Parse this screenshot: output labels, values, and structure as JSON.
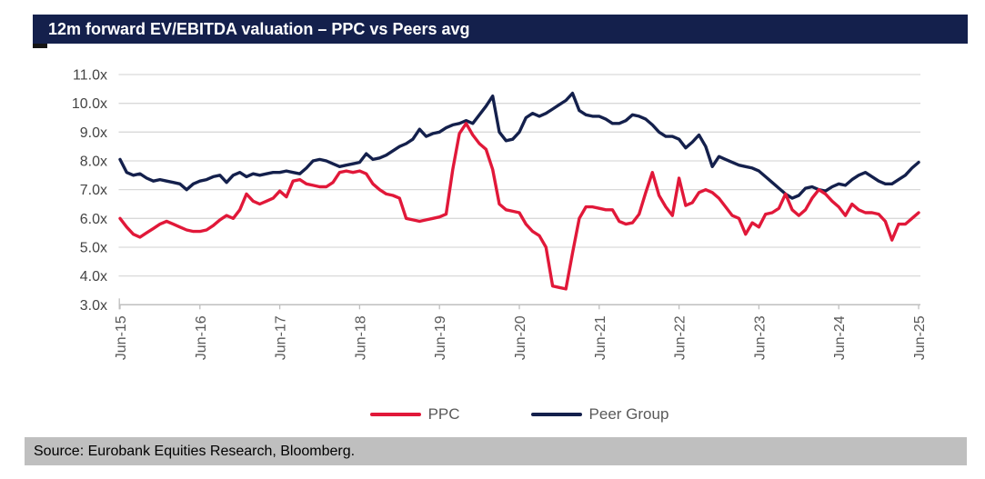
{
  "header": {
    "title": "12m forward EV/EBITDA valuation – PPC vs Peers avg",
    "bar_color": "#14204c",
    "text_color": "#ffffff"
  },
  "colors": {
    "accent_navy": "#14204c",
    "accent_red": "#e11839",
    "gridline": "#d9d9d9",
    "axis": "#bfbfbf",
    "y_tick_label": "#444444",
    "x_tick_label": "#595959",
    "legend_text": "#595959",
    "footer_bar": "#bfbfbf"
  },
  "chart_data": {
    "type": "line",
    "title": "12m forward EV/EBITDA valuation – PPC vs Peers avg",
    "grid": "horizontal",
    "legend_position": "bottom",
    "y_axis": {
      "min": 3.0,
      "max": 11.0,
      "tick_step": 1.0,
      "tick_labels": [
        "11.0x",
        "10.0x",
        "9.0x",
        "8.0x",
        "7.0x",
        "6.0x",
        "5.0x",
        "4.0x",
        "3.0x"
      ]
    },
    "x_axis": {
      "tick_labels": [
        "Jun-15",
        "Jun-16",
        "Jun-17",
        "Jun-18",
        "Jun-19",
        "Jun-20",
        "Jun-21",
        "Jun-22",
        "Jun-23",
        "Jun-24",
        "Jun-25"
      ],
      "frequency": "monthly",
      "points_per_tick": 12
    },
    "series": [
      {
        "name": "PPC",
        "color": "#e11839",
        "values": [
          6.0,
          5.7,
          5.45,
          5.35,
          5.5,
          5.65,
          5.8,
          5.9,
          5.8,
          5.7,
          5.6,
          5.55,
          5.55,
          5.6,
          5.75,
          5.95,
          6.1,
          6.0,
          6.3,
          6.85,
          6.6,
          6.5,
          6.6,
          6.7,
          6.95,
          6.75,
          7.3,
          7.35,
          7.2,
          7.15,
          7.1,
          7.1,
          7.25,
          7.6,
          7.65,
          7.6,
          7.65,
          7.55,
          7.2,
          7.0,
          6.85,
          6.8,
          6.7,
          6.0,
          5.95,
          5.9,
          5.95,
          6.0,
          6.05,
          6.15,
          7.7,
          8.95,
          9.3,
          8.9,
          8.6,
          8.4,
          7.7,
          6.5,
          6.3,
          6.25,
          6.2,
          5.8,
          5.55,
          5.4,
          5.0,
          3.65,
          3.6,
          3.55,
          4.8,
          6.0,
          6.4,
          6.4,
          6.35,
          6.3,
          6.3,
          5.9,
          5.8,
          5.85,
          6.15,
          6.9,
          7.6,
          6.8,
          6.4,
          6.1,
          7.4,
          6.45,
          6.55,
          6.9,
          7.0,
          6.9,
          6.7,
          6.4,
          6.1,
          6.0,
          5.45,
          5.85,
          5.7,
          6.15,
          6.2,
          6.35,
          6.85,
          6.3,
          6.1,
          6.3,
          6.7,
          7.0,
          6.85,
          6.6,
          6.4,
          6.1,
          6.5,
          6.3,
          6.2,
          6.2,
          6.15,
          5.9,
          5.25,
          5.8,
          5.8,
          6.0,
          6.2
        ]
      },
      {
        "name": "Peer Group",
        "color": "#14204c",
        "values": [
          8.05,
          7.6,
          7.5,
          7.55,
          7.4,
          7.3,
          7.35,
          7.3,
          7.25,
          7.2,
          7.0,
          7.2,
          7.3,
          7.35,
          7.45,
          7.5,
          7.25,
          7.5,
          7.6,
          7.45,
          7.55,
          7.5,
          7.55,
          7.6,
          7.6,
          7.65,
          7.6,
          7.55,
          7.75,
          8.0,
          8.05,
          8.0,
          7.9,
          7.8,
          7.85,
          7.9,
          7.95,
          8.25,
          8.05,
          8.1,
          8.2,
          8.35,
          8.5,
          8.6,
          8.75,
          9.1,
          8.85,
          8.95,
          9.0,
          9.15,
          9.25,
          9.3,
          9.4,
          9.3,
          9.6,
          9.9,
          10.25,
          9.0,
          8.7,
          8.75,
          9.0,
          9.5,
          9.65,
          9.55,
          9.65,
          9.8,
          9.95,
          10.1,
          10.35,
          9.75,
          9.6,
          9.55,
          9.55,
          9.45,
          9.3,
          9.3,
          9.4,
          9.6,
          9.55,
          9.45,
          9.25,
          9.0,
          8.85,
          8.85,
          8.75,
          8.45,
          8.65,
          8.9,
          8.5,
          7.8,
          8.15,
          8.05,
          7.95,
          7.85,
          7.8,
          7.75,
          7.65,
          7.45,
          7.25,
          7.05,
          6.85,
          6.7,
          6.8,
          7.05,
          7.1,
          7.0,
          6.95,
          7.1,
          7.2,
          7.15,
          7.35,
          7.5,
          7.6,
          7.45,
          7.3,
          7.2,
          7.2,
          7.35,
          7.5,
          7.75,
          7.95
        ]
      }
    ]
  },
  "footer": {
    "source": "Source: Eurobank Equities Research, Bloomberg.",
    "bar_color": "#bfbfbf"
  }
}
